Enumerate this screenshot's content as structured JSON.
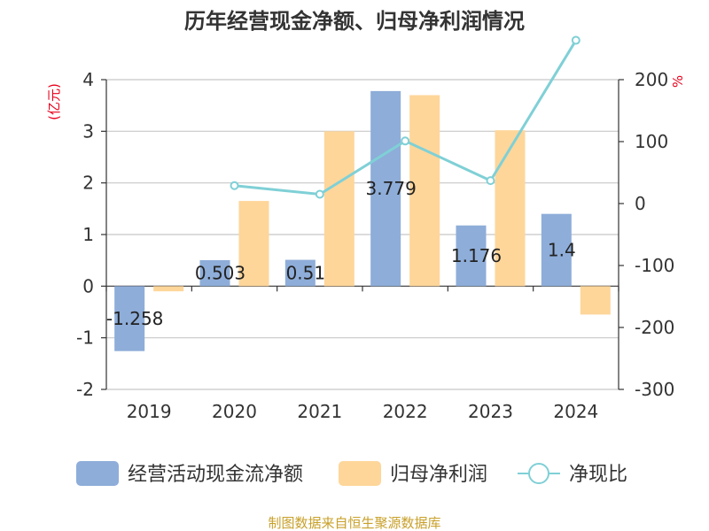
{
  "chart_data": {
    "type": "bar",
    "title": "历年经营现金净额、归母净利润情况",
    "categories": [
      "2019",
      "2020",
      "2021",
      "2022",
      "2023",
      "2024"
    ],
    "left_axis": {
      "unit": "(亿元)",
      "ylim": [
        -2,
        4
      ],
      "ticks": [
        "4",
        "3",
        "2",
        "1",
        "0",
        "-1",
        "-2"
      ]
    },
    "right_axis": {
      "unit": "%",
      "ylim": [
        -300,
        200
      ],
      "ticks": [
        "200",
        "100",
        "0",
        "-100",
        "-200",
        "-300"
      ]
    },
    "series": [
      {
        "name": "经营活动现金流净额",
        "kind": "bar",
        "axis": "left",
        "color": "#8eadd9",
        "values": [
          -1.258,
          0.503,
          0.51,
          3.779,
          1.176,
          1.4
        ],
        "labels": [
          "-1.258",
          "0.503",
          "0.51",
          "3.779",
          "1.176",
          "1.4"
        ]
      },
      {
        "name": "归母净利润",
        "kind": "bar",
        "axis": "left",
        "color": "#fed69a",
        "values": [
          -0.1,
          1.65,
          3.0,
          3.7,
          3.02,
          -0.55
        ]
      },
      {
        "name": "净现比",
        "kind": "line",
        "axis": "right",
        "color": "#7fd0d6",
        "values": [
          null,
          29,
          15,
          101,
          37,
          263.5
        ]
      }
    ],
    "legend": [
      "经营活动现金流净额",
      "归母净利润",
      "净现比"
    ],
    "source": "制图数据来自恒生聚源数据库"
  }
}
